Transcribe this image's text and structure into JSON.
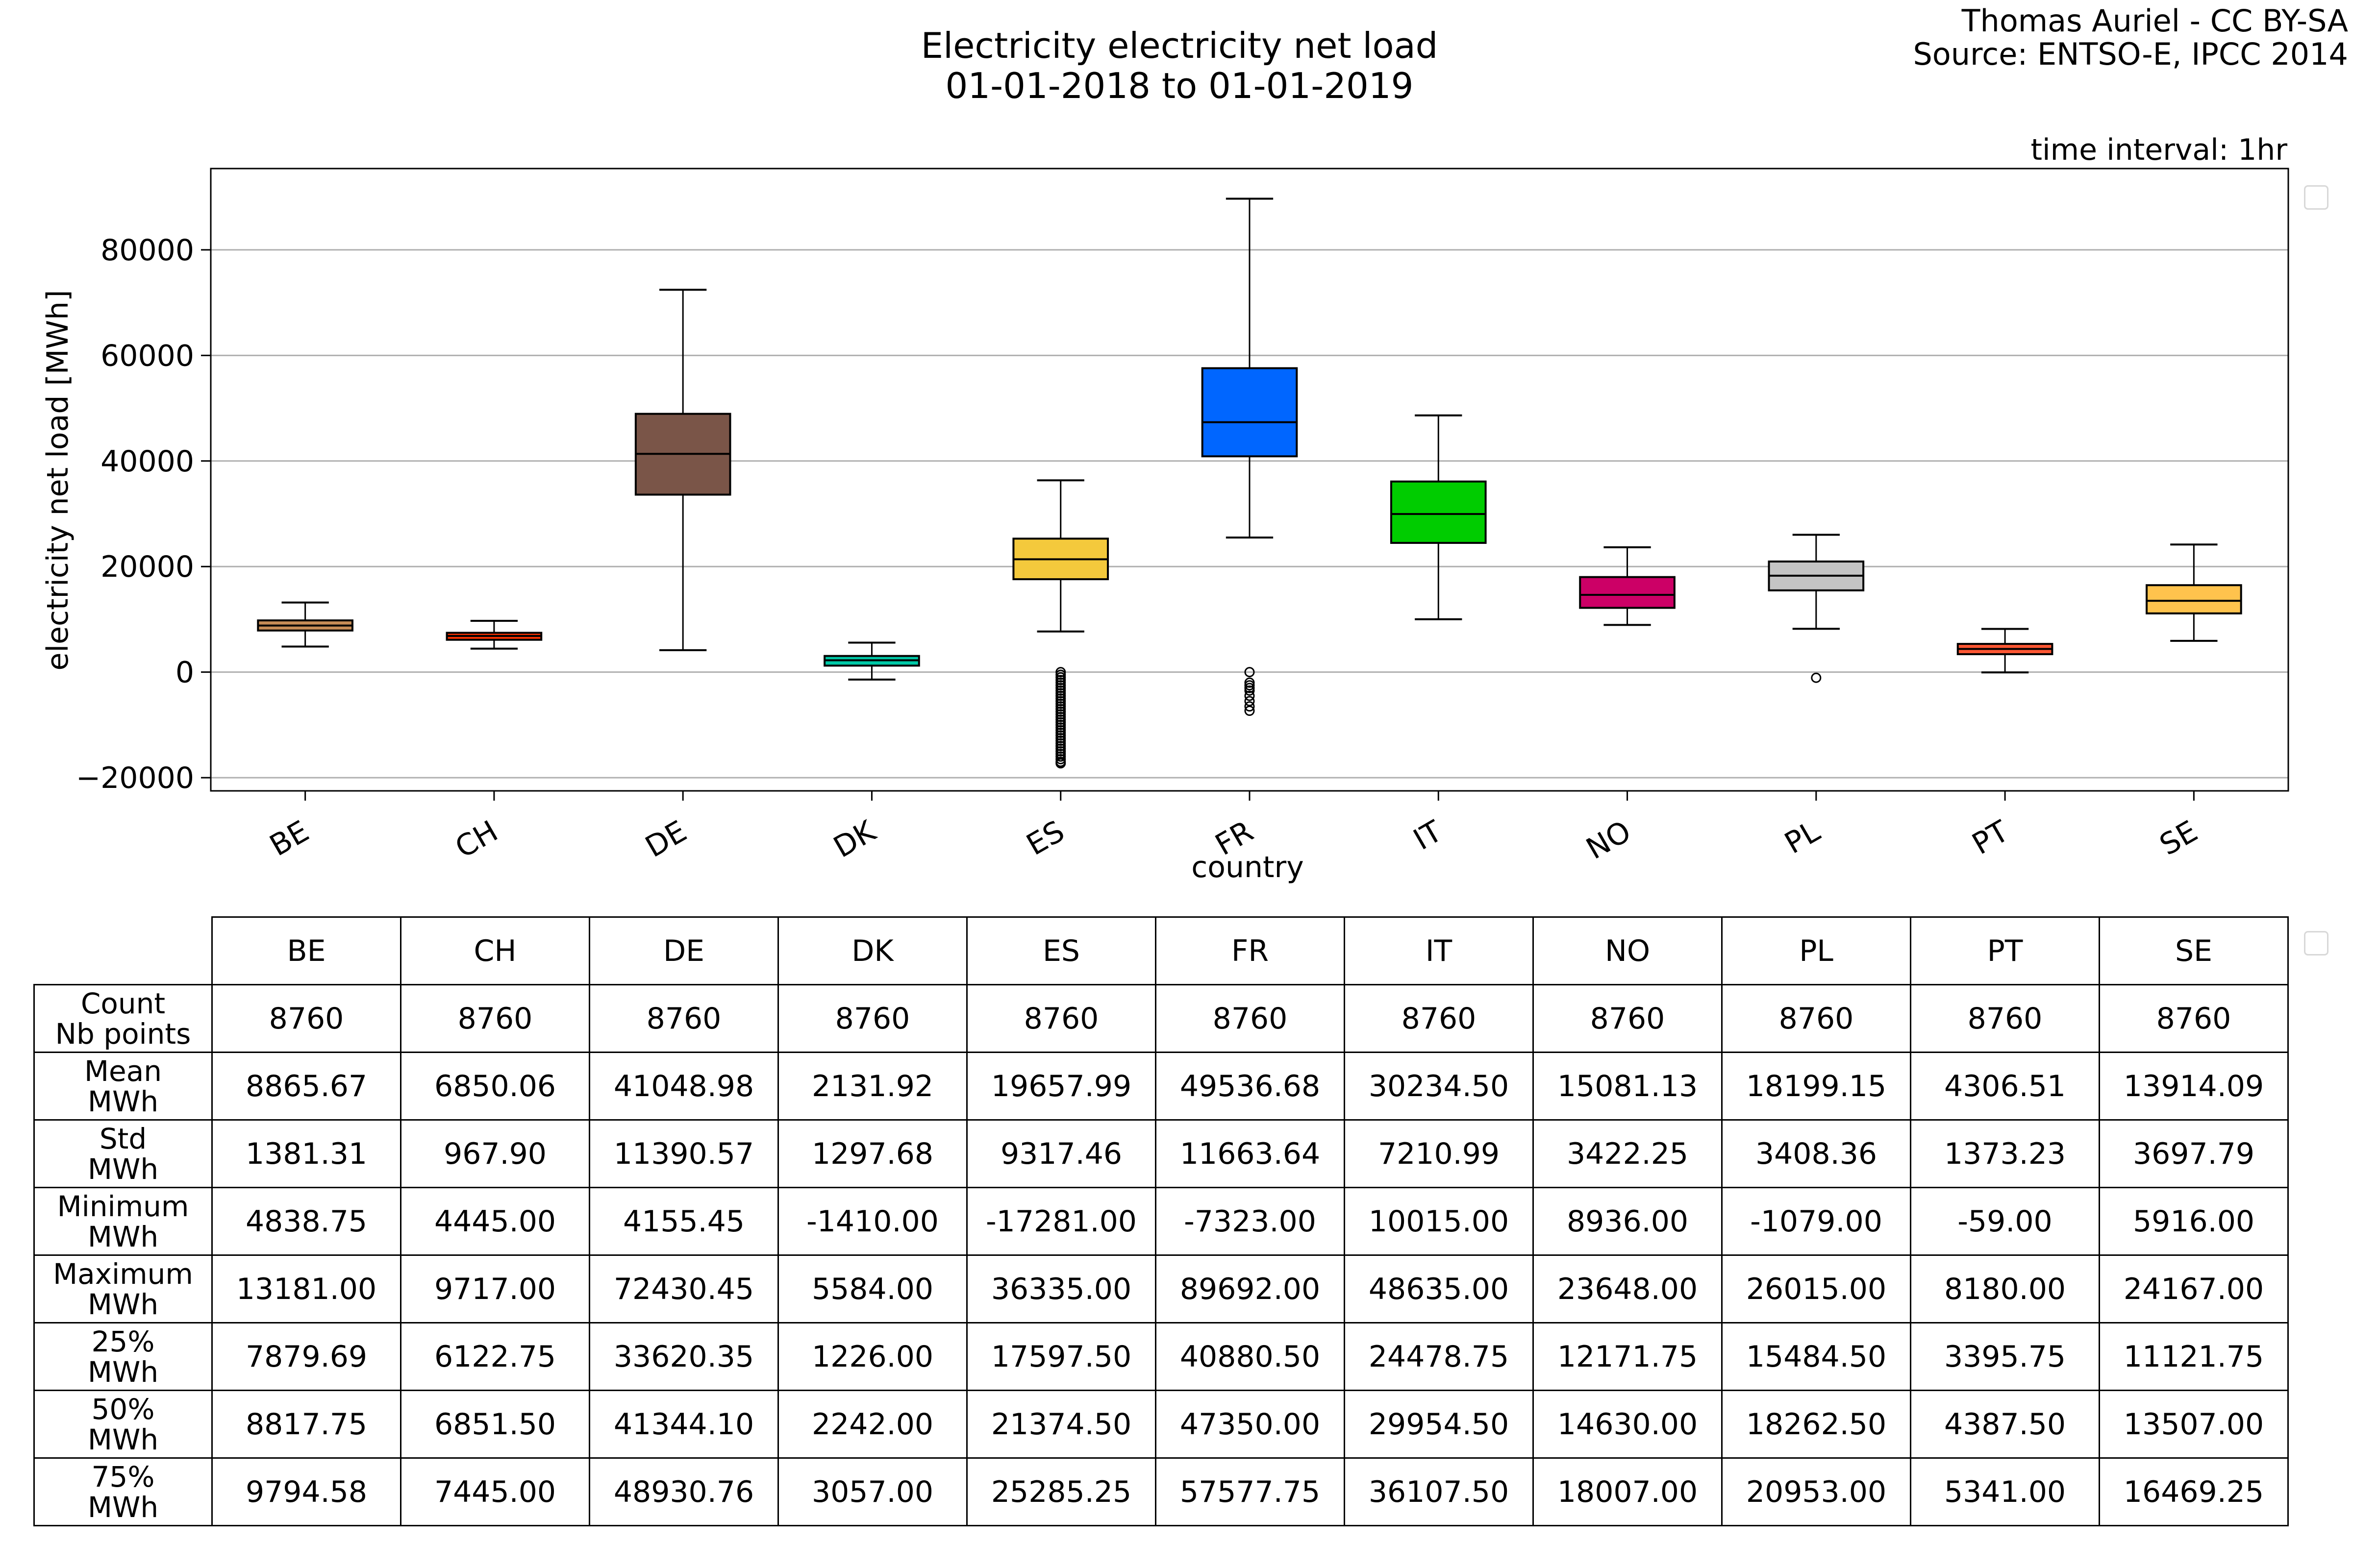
{
  "header": {
    "title_line1": "Electricity electricity net load",
    "title_line2": "01-01-2018 to 01-01-2019",
    "credit_line1": "Thomas Auriel - CC BY-SA",
    "credit_line2": "Source: ENTSO-E, IPCC 2014",
    "time_interval": "time interval: 1hr"
  },
  "chart_data": {
    "type": "box",
    "xlabel": "country",
    "ylabel": "electricity net load [MWh]",
    "ylim": [
      -22500,
      95400
    ],
    "yticks": [
      -20000,
      0,
      20000,
      40000,
      60000,
      80000
    ],
    "ytick_labels": [
      "−20000",
      "0",
      "20000",
      "40000",
      "60000",
      "80000"
    ],
    "grid": "horizontal",
    "categories": [
      "BE",
      "CH",
      "DE",
      "DK",
      "ES",
      "FR",
      "IT",
      "NO",
      "PL",
      "PT",
      "SE"
    ],
    "colors": [
      "#c68c56",
      "#ff3300",
      "#7a5548",
      "#00c9a7",
      "#f4c93c",
      "#0066ff",
      "#00cc00",
      "#cc0066",
      "#c4c4c4",
      "#ff5733",
      "#ffc34d"
    ],
    "q1": [
      7879.69,
      6122.75,
      33620.35,
      1226.0,
      17597.5,
      40880.5,
      24478.75,
      12171.75,
      15484.5,
      3395.75,
      11121.75
    ],
    "median": [
      8817.75,
      6851.5,
      41344.1,
      2242.0,
      21374.5,
      47350.0,
      29954.5,
      14630.0,
      18262.5,
      4387.5,
      13507.0
    ],
    "q3": [
      9794.58,
      7445.0,
      48930.76,
      3057.0,
      25285.25,
      57577.75,
      36107.5,
      18007.0,
      20953.0,
      5341.0,
      16469.25
    ],
    "whisker_low": [
      4838.75,
      4445.0,
      4155.45,
      -1410.0,
      7700,
      25500,
      10015.0,
      8936.0,
      8200,
      -59.0,
      5916.0
    ],
    "whisker_high": [
      13181.0,
      9717.0,
      72430.45,
      5584.0,
      36335.0,
      89692.0,
      48635.0,
      23648.0,
      26015.0,
      8180.0,
      24167.0
    ],
    "outliers": {
      "ES": [
        0,
        -500,
        -1000,
        -1500,
        -2000,
        -2500,
        -3000,
        -3500,
        -4000,
        -4500,
        -5000,
        -5500,
        -6000,
        -6500,
        -7000,
        -7500,
        -8000,
        -8500,
        -9000,
        -9500,
        -10000,
        -10500,
        -11000,
        -11500,
        -12000,
        -12500,
        -13000,
        -13500,
        -14000,
        -14500,
        -15000,
        -15500,
        -16000,
        -16500,
        -17000,
        -17281
      ],
      "FR": [
        0,
        -2000,
        -2500,
        -3000,
        -3500,
        -4500,
        -5500,
        -6500,
        -7323
      ],
      "PL": [
        -1079
      ]
    },
    "legend": "right (empty)"
  },
  "table": {
    "columns": [
      "BE",
      "CH",
      "DE",
      "DK",
      "ES",
      "FR",
      "IT",
      "NO",
      "PL",
      "PT",
      "SE"
    ],
    "rows": [
      {
        "label1": "Count",
        "label2": "Nb points",
        "values": [
          "8760",
          "8760",
          "8760",
          "8760",
          "8760",
          "8760",
          "8760",
          "8760",
          "8760",
          "8760",
          "8760"
        ]
      },
      {
        "label1": "Mean",
        "label2": "MWh",
        "values": [
          "8865.67",
          "6850.06",
          "41048.98",
          "2131.92",
          "19657.99",
          "49536.68",
          "30234.50",
          "15081.13",
          "18199.15",
          "4306.51",
          "13914.09"
        ]
      },
      {
        "label1": "Std",
        "label2": "MWh",
        "values": [
          "1381.31",
          "967.90",
          "11390.57",
          "1297.68",
          "9317.46",
          "11663.64",
          "7210.99",
          "3422.25",
          "3408.36",
          "1373.23",
          "3697.79"
        ]
      },
      {
        "label1": "Minimum",
        "label2": "MWh",
        "values": [
          "4838.75",
          "4445.00",
          "4155.45",
          "-1410.00",
          "-17281.00",
          "-7323.00",
          "10015.00",
          "8936.00",
          "-1079.00",
          "-59.00",
          "5916.00"
        ]
      },
      {
        "label1": "Maximum",
        "label2": "MWh",
        "values": [
          "13181.00",
          "9717.00",
          "72430.45",
          "5584.00",
          "36335.00",
          "89692.00",
          "48635.00",
          "23648.00",
          "26015.00",
          "8180.00",
          "24167.00"
        ]
      },
      {
        "label1": "25%",
        "label2": "MWh",
        "values": [
          "7879.69",
          "6122.75",
          "33620.35",
          "1226.00",
          "17597.50",
          "40880.50",
          "24478.75",
          "12171.75",
          "15484.50",
          "3395.75",
          "11121.75"
        ]
      },
      {
        "label1": "50%",
        "label2": "MWh",
        "values": [
          "8817.75",
          "6851.50",
          "41344.10",
          "2242.00",
          "21374.50",
          "47350.00",
          "29954.50",
          "14630.00",
          "18262.50",
          "4387.50",
          "13507.00"
        ]
      },
      {
        "label1": "75%",
        "label2": "MWh",
        "values": [
          "9794.58",
          "7445.00",
          "48930.76",
          "3057.00",
          "25285.25",
          "57577.75",
          "36107.50",
          "18007.00",
          "20953.00",
          "5341.00",
          "16469.25"
        ]
      }
    ]
  }
}
